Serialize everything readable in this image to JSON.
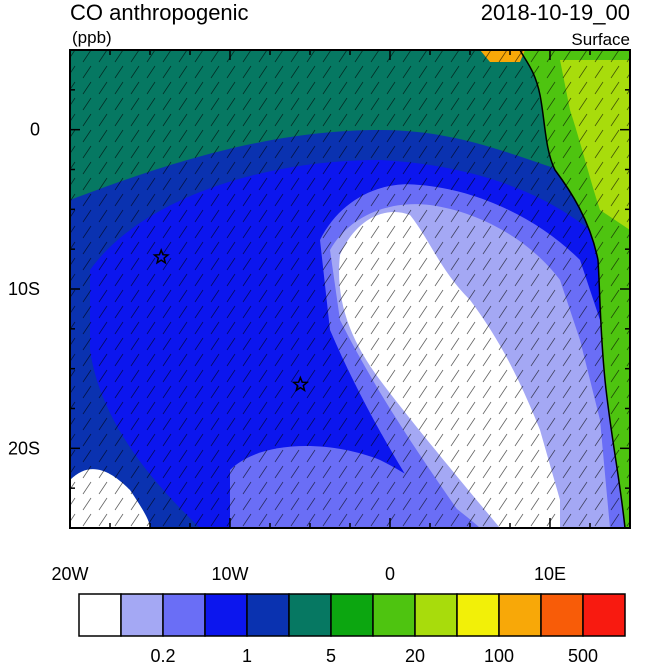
{
  "title": "CO anthropogenic",
  "units": "(ppb)",
  "datetime": "2018-10-19_00",
  "level": "Surface",
  "axes": {
    "lon_ticks": [
      {
        "value": -20,
        "label": "20W"
      },
      {
        "value": -10,
        "label": "10W"
      },
      {
        "value": 0,
        "label": "0"
      },
      {
        "value": 10,
        "label": "10E"
      }
    ],
    "lat_ticks": [
      {
        "value": 0,
        "label": "0"
      },
      {
        "value": -10,
        "label": "10S"
      },
      {
        "value": -20,
        "label": "20S"
      }
    ],
    "lon_range": [
      -20,
      15
    ],
    "lat_range": [
      -25,
      5
    ]
  },
  "colorbar": {
    "colors": [
      "#ffffff",
      "#a4a8f4",
      "#6a6ef6",
      "#0c16ee",
      "#0a32b0",
      "#067862",
      "#0ca610",
      "#4ec410",
      "#a8dc0c",
      "#f2f008",
      "#f8a808",
      "#f85c08",
      "#f81a10"
    ],
    "labels": [
      {
        "after_box": 2,
        "text": "0.2"
      },
      {
        "after_box": 4,
        "text": "1"
      },
      {
        "after_box": 6,
        "text": "5"
      },
      {
        "after_box": 8,
        "text": "20"
      },
      {
        "after_box": 10,
        "text": "100"
      },
      {
        "after_box": 12,
        "text": "500"
      }
    ]
  },
  "markers": [
    {
      "name": "star-marker",
      "lon": -14.3,
      "lat": -8.0
    },
    {
      "name": "star-marker",
      "lon": -5.6,
      "lat": -16.0
    }
  ]
}
